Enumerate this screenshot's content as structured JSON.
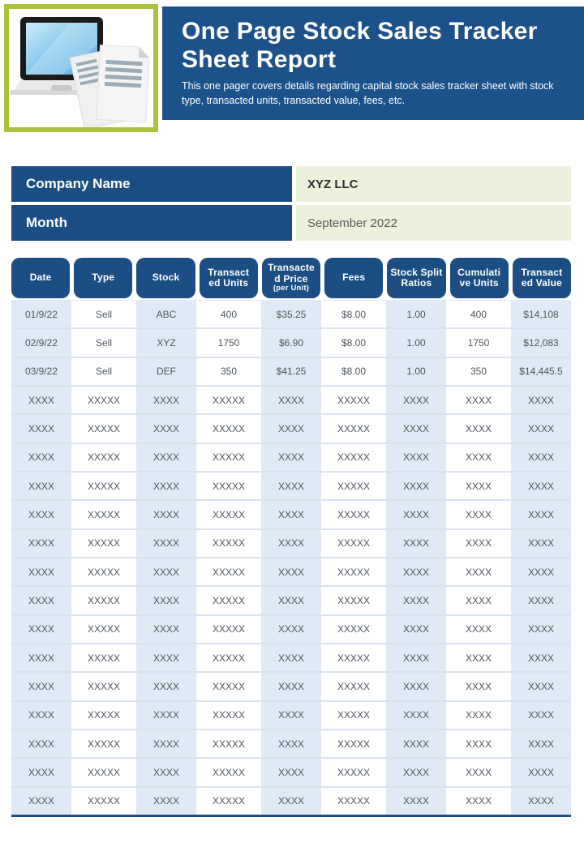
{
  "header": {
    "title": "One Page Stock Sales Tracker Sheet Report",
    "subtitle": "This one pager covers details regarding capital stock sales tracker sheet with stock type, transacted units, transacted value, fees, etc.",
    "illustration": "laptop-with-documents"
  },
  "info": {
    "company": {
      "label": "Company Name",
      "value": "XYZ LLC"
    },
    "month": {
      "label": "Month",
      "value": "September 2022"
    }
  },
  "table": {
    "columns": [
      {
        "label": "Date",
        "lines": [
          "Date"
        ]
      },
      {
        "label": "Type",
        "lines": [
          "Type"
        ]
      },
      {
        "label": "Stock",
        "lines": [
          "Stock"
        ]
      },
      {
        "label": "Transacted Units",
        "lines": [
          "Transact",
          "ed Units"
        ]
      },
      {
        "label": "Transacted Price (per Unit)",
        "lines": [
          "Transacte",
          "d Price"
        ],
        "sub": "(per Unit)"
      },
      {
        "label": "Fees",
        "lines": [
          "Fees"
        ]
      },
      {
        "label": "Stock Split Ratios",
        "lines": [
          "Stock Split",
          "Ratios"
        ]
      },
      {
        "label": "Cumulative Units",
        "lines": [
          "Cumulati",
          "ve Units"
        ]
      },
      {
        "label": "Transacted Value",
        "lines": [
          "Transact",
          "ed Value"
        ]
      }
    ],
    "rows": [
      [
        "01/9/22",
        "Sell",
        "ABC",
        "400",
        "$35.25",
        "$8.00",
        "1.00",
        "400",
        "$14,108"
      ],
      [
        "02/9/22",
        "Sell",
        "XYZ",
        "1750",
        "$6.90",
        "$8.00",
        "1.00",
        "1750",
        "$12,083"
      ],
      [
        "03/9/22",
        "Sell",
        "DEF",
        "350",
        "$41.25",
        "$8.00",
        "1.00",
        "350",
        "$14,445.5"
      ],
      [
        "XXXX",
        "XXXXX",
        "XXXX",
        "XXXXX",
        "XXXX",
        "XXXXX",
        "XXXX",
        "XXXX",
        "XXXX"
      ],
      [
        "XXXX",
        "XXXXX",
        "XXXX",
        "XXXXX",
        "XXXX",
        "XXXXX",
        "XXXX",
        "XXXX",
        "XXXX"
      ],
      [
        "XXXX",
        "XXXXX",
        "XXXX",
        "XXXXX",
        "XXXX",
        "XXXXX",
        "XXXX",
        "XXXX",
        "XXXX"
      ],
      [
        "XXXX",
        "XXXXX",
        "XXXX",
        "XXXXX",
        "XXXX",
        "XXXXX",
        "XXXX",
        "XXXX",
        "XXXX"
      ],
      [
        "XXXX",
        "XXXXX",
        "XXXX",
        "XXXXX",
        "XXXX",
        "XXXXX",
        "XXXX",
        "XXXX",
        "XXXX"
      ],
      [
        "XXXX",
        "XXXXX",
        "XXXX",
        "XXXXX",
        "XXXX",
        "XXXXX",
        "XXXX",
        "XXXX",
        "XXXX"
      ],
      [
        "XXXX",
        "XXXXX",
        "XXXX",
        "XXXXX",
        "XXXX",
        "XXXXX",
        "XXXX",
        "XXXX",
        "XXXX"
      ],
      [
        "XXXX",
        "XXXXX",
        "XXXX",
        "XXXXX",
        "XXXX",
        "XXXXX",
        "XXXX",
        "XXXX",
        "XXXX"
      ],
      [
        "XXXX",
        "XXXXX",
        "XXXX",
        "XXXXX",
        "XXXX",
        "XXXXX",
        "XXXX",
        "XXXX",
        "XXXX"
      ],
      [
        "XXXX",
        "XXXXX",
        "XXXX",
        "XXXXX",
        "XXXX",
        "XXXXX",
        "XXXX",
        "XXXX",
        "XXXX"
      ],
      [
        "XXXX",
        "XXXXX",
        "XXXX",
        "XXXXX",
        "XXXX",
        "XXXXX",
        "XXXX",
        "XXXX",
        "XXXX"
      ],
      [
        "XXXX",
        "XXXXX",
        "XXXX",
        "XXXXX",
        "XXXX",
        "XXXXX",
        "XXXX",
        "XXXX",
        "XXXX"
      ],
      [
        "XXXX",
        "XXXXX",
        "XXXX",
        "XXXXX",
        "XXXX",
        "XXXXX",
        "XXXX",
        "XXXX",
        "XXXX"
      ],
      [
        "XXXX",
        "XXXXX",
        "XXXX",
        "XXXXX",
        "XXXX",
        "XXXXX",
        "XXXX",
        "XXXX",
        "XXXX"
      ],
      [
        "XXXX",
        "XXXXX",
        "XXXX",
        "XXXXX",
        "XXXX",
        "XXXXX",
        "XXXX",
        "XXXX",
        "XXXX"
      ]
    ]
  },
  "colors": {
    "navy": "#1C4E84",
    "banner_navy": "#1D5189",
    "lime_border": "#A9C33C",
    "value_cell_bg": "#EDF1DB",
    "blue_column_bg": "#DFEAF6",
    "row_line": "#D9E2ED",
    "cell_text": "#4E565F"
  }
}
